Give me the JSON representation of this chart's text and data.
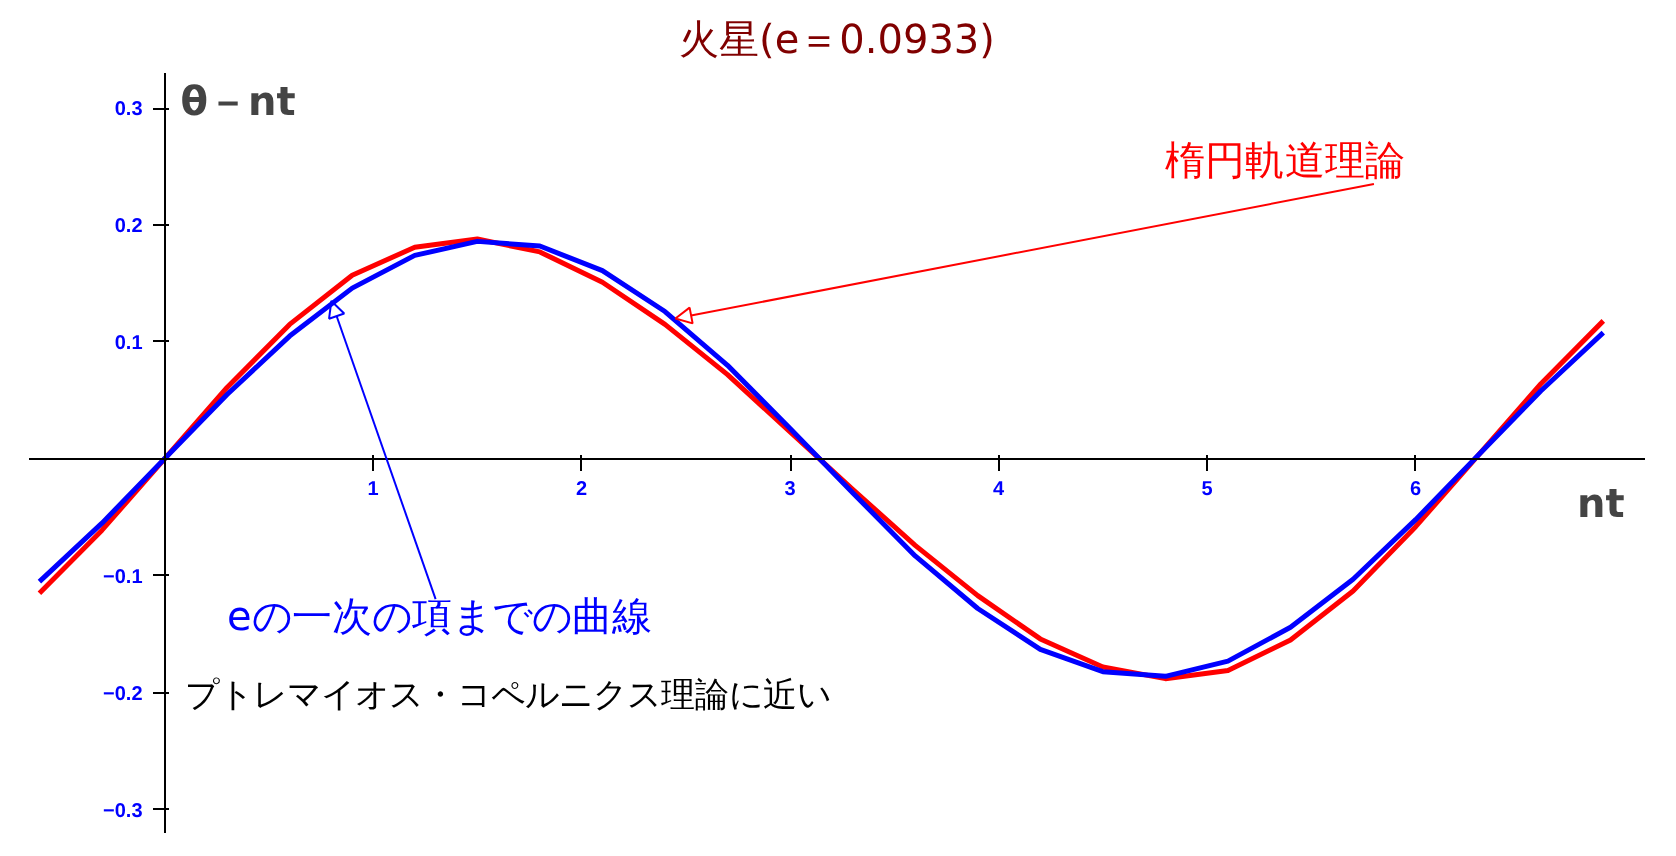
{
  "chart_data": {
    "type": "line",
    "title": "火星(e＝0.0933)",
    "xlabel": "nt",
    "ylabel": "θ－nt",
    "xlim": [
      -0.65,
      7.1
    ],
    "ylim": [
      -0.32,
      0.33
    ],
    "xticks": [
      1,
      2,
      3,
      4,
      5,
      6
    ],
    "yticks": [
      -0.3,
      -0.2,
      -0.1,
      0.1,
      0.2,
      0.3
    ],
    "grid": false,
    "marker": "none",
    "line_style": "solid",
    "x": [
      -0.6,
      -0.3,
      0,
      0.3,
      0.6,
      0.9,
      1.2,
      1.5,
      1.8,
      2.1,
      2.4,
      2.7,
      3.0,
      3.3,
      3.6,
      3.9,
      4.2,
      4.5,
      4.8,
      5.1,
      5.4,
      5.7,
      6.0,
      6.3,
      6.6,
      6.9
    ],
    "series": [
      {
        "color": "#ff0000",
        "values": [
          -0.115,
          -0.061,
          0,
          0.061,
          0.115,
          0.157,
          0.181,
          0.188,
          0.177,
          0.151,
          0.115,
          0.072,
          0.023,
          -0.026,
          -0.074,
          -0.117,
          -0.154,
          -0.178,
          -0.188,
          -0.181,
          -0.155,
          -0.113,
          -0.058,
          0.003,
          0.064,
          0.118
        ]
      },
      {
        "color": "#0000ff",
        "values": [
          -0.105,
          -0.055,
          0,
          0.055,
          0.105,
          0.146,
          0.174,
          0.186,
          0.182,
          0.161,
          0.126,
          0.08,
          0.026,
          -0.029,
          -0.083,
          -0.128,
          -0.163,
          -0.182,
          -0.186,
          -0.173,
          -0.144,
          -0.103,
          -0.052,
          0.003,
          0.058,
          0.108
        ]
      }
    ],
    "annotations": [
      {
        "text": "楕円軌道理論",
        "x": 2.45,
        "y": 0.12
      },
      {
        "text": "eの一次の項までの曲線",
        "x": 0.8,
        "y": 0.135
      },
      "プトレマイオス・コペルニクス理論に近い"
    ]
  }
}
